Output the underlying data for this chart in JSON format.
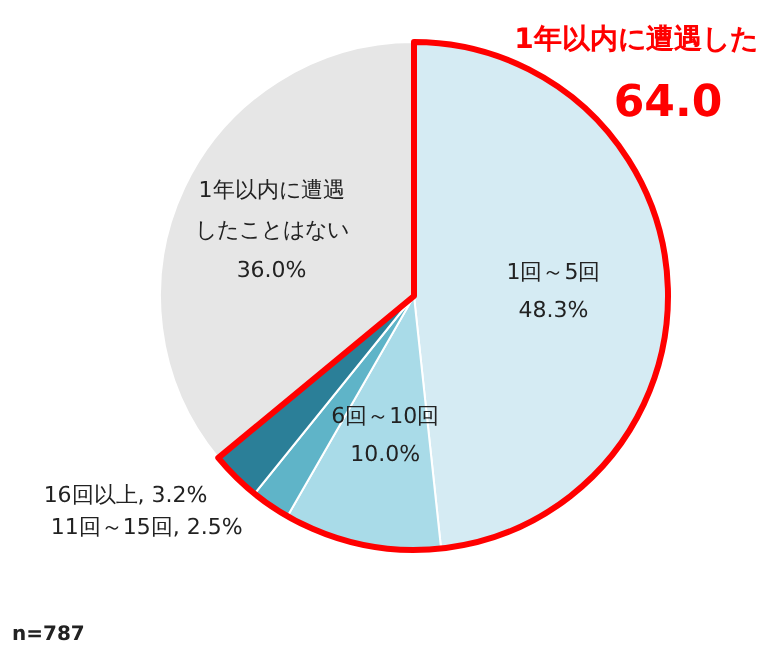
{
  "chart_data": {
    "type": "pie",
    "categories": [
      "1回～5回",
      "6回～10回",
      "11回～15回",
      "16回以上",
      "1年以内に遭遇したことはない"
    ],
    "values": [
      48.3,
      10.0,
      2.5,
      3.2,
      36.0
    ],
    "value_labels": [
      "48.3%",
      "10.0%",
      "2.5%",
      "3.2%",
      "36.0%"
    ],
    "colors": [
      "#d5ebf3",
      "#a9dbe8",
      "#5fb4c8",
      "#2b7f98",
      "#e6e6e6"
    ],
    "annotations": [
      "1年以内に遭遇した",
      "64.0",
      "n=787"
    ]
  }
}
